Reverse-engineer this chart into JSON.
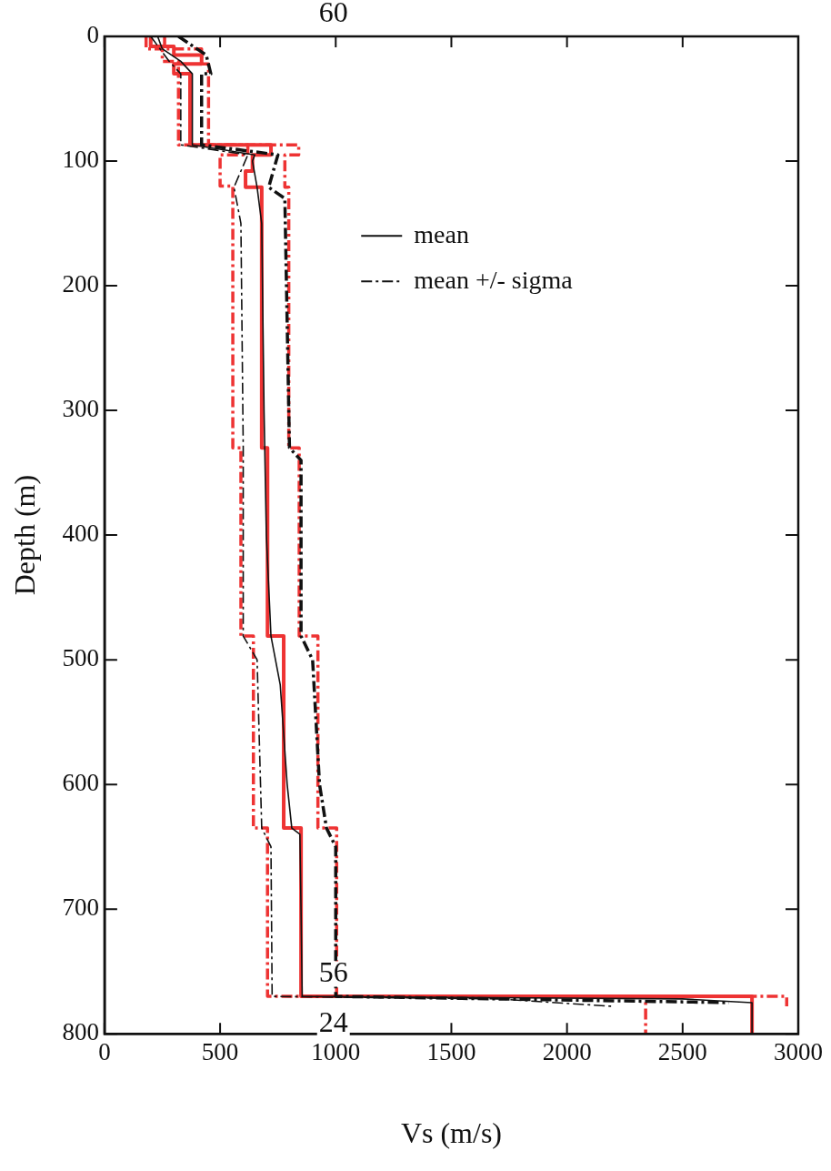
{
  "chart_data": {
    "type": "line",
    "xlabel": "Vs (m/s)",
    "ylabel": "Depth (m)",
    "xlim": [
      0,
      3000
    ],
    "xticks": [
      0,
      500,
      1000,
      1500,
      2000,
      2500,
      3000
    ],
    "ylim": [
      800,
      0
    ],
    "yticks": [
      0,
      100,
      200,
      300,
      400,
      500,
      600,
      700,
      800
    ],
    "grid": false,
    "legend": "top right",
    "marker": "none",
    "annotations": [
      "60",
      "56",
      "24"
    ],
    "series": [
      {
        "color": "#ee3333",
        "line_style": "solid",
        "x": [
          200,
          200,
          300,
          300,
          420,
          420,
          300,
          300,
          370,
          370,
          720,
          720,
          640,
          640,
          610,
          610,
          680,
          680,
          705,
          705,
          775,
          775,
          850,
          850,
          2800,
          2800
        ],
        "values": [
          0,
          8,
          8,
          15,
          15,
          22,
          22,
          30,
          30,
          87,
          87,
          95,
          95,
          108,
          108,
          121,
          121,
          330,
          330,
          481,
          481,
          635,
          635,
          770,
          770,
          800
        ]
      },
      {
        "color": "#ee3333",
        "line_style": "dashed",
        "x": [
          180,
          180,
          250,
          250,
          320,
          320,
          620,
          620,
          500,
          500,
          555,
          555,
          590,
          590,
          644,
          644,
          705,
          705,
          2340,
          2340
        ],
        "values": [
          0,
          10,
          10,
          20,
          20,
          87,
          87,
          95,
          95,
          120,
          120,
          330,
          330,
          481,
          481,
          635,
          635,
          770,
          770,
          800
        ]
      },
      {
        "color": "#ee3333",
        "line_style": "dashed",
        "x": [
          260,
          260,
          420,
          420,
          450,
          450,
          840,
          840,
          780,
          780,
          797,
          797,
          842,
          842,
          923,
          923,
          1004,
          1004,
          2950,
          2950
        ],
        "values": [
          0,
          10,
          10,
          22,
          22,
          87,
          87,
          95,
          95,
          121,
          121,
          330,
          330,
          481,
          481,
          635,
          635,
          770,
          770,
          778
        ]
      },
      {
        "name": "mean",
        "color": "#111111",
        "line_style": "solid",
        "x": [
          230,
          250,
          330,
          380,
          380,
          650,
          640,
          660,
          680,
          690,
          700,
          720,
          760,
          790,
          810,
          845,
          850,
          855,
          2500,
          2800,
          2800
        ],
        "values": [
          0,
          10,
          20,
          30,
          87,
          95,
          100,
          121,
          150,
          300,
          400,
          481,
          520,
          600,
          635,
          640,
          700,
          770,
          772,
          775,
          800
        ]
      },
      {
        "name": "mean +/- sigma",
        "color": "#111111",
        "line_style": "dashed",
        "x": [
          200,
          280,
          330,
          330,
          620,
          560,
          590,
          600,
          600,
          660,
          680,
          720,
          725,
          1700,
          2200
        ],
        "values": [
          0,
          20,
          30,
          87,
          95,
          121,
          150,
          330,
          481,
          500,
          635,
          650,
          770,
          772,
          778
        ]
      },
      {
        "color": "#111111",
        "line_style": "dashed",
        "x": [
          320,
          440,
          460,
          420,
          420,
          750,
          710,
          780,
          800,
          850,
          850,
          900,
          930,
          960,
          1000,
          1000,
          2700
        ],
        "values": [
          0,
          15,
          30,
          30,
          87,
          95,
          121,
          130,
          330,
          340,
          481,
          500,
          600,
          635,
          650,
          770,
          775
        ]
      }
    ]
  }
}
